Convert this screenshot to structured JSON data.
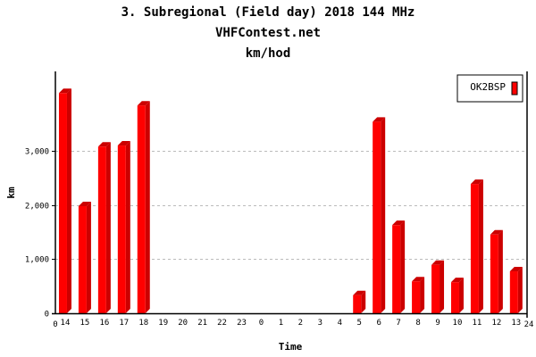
{
  "chart_data": {
    "type": "bar",
    "title": "3. Subregional (Field day) 2018 144 MHz",
    "subtitle": "VHFContest.net",
    "subtitle2": "km/hod",
    "xlabel": "Time",
    "ylabel": "km",
    "x_range_labels": [
      "0",
      "24"
    ],
    "categories": [
      "14",
      "15",
      "16",
      "17",
      "18",
      "19",
      "20",
      "21",
      "22",
      "23",
      "0",
      "1",
      "2",
      "3",
      "4",
      "5",
      "6",
      "7",
      "8",
      "9",
      "10",
      "11",
      "12",
      "13"
    ],
    "series": [
      {
        "name": "OK2BSP",
        "color": "#ff0000",
        "side_color": "#cc0000",
        "values": [
          4070,
          1980,
          3080,
          3100,
          3840,
          0,
          0,
          0,
          0,
          0,
          0,
          0,
          0,
          0,
          0,
          335,
          3540,
          1630,
          590,
          895,
          575,
          2390,
          1455,
          775
        ]
      }
    ],
    "yticks": [
      0,
      1000,
      2000,
      3000
    ],
    "ytick_labels": [
      "0",
      "1,000",
      "2,000",
      "3,000"
    ],
    "ylim": [
      0,
      4470
    ],
    "grid": true,
    "legend_position": "top-right"
  }
}
